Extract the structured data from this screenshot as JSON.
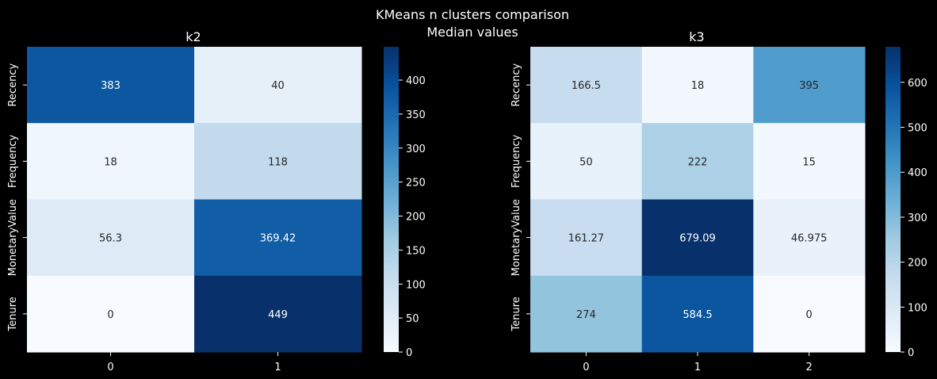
{
  "figure": {
    "title": "KMeans n clusters comparison",
    "subtitle": "Median values"
  },
  "chart_data": [
    {
      "type": "heatmap",
      "title": "k2",
      "xlabel": "",
      "ylabel": "",
      "x_categories": [
        "0",
        "1"
      ],
      "y_categories": [
        "Recency",
        "Frequency",
        "MonetaryValue",
        "Tenure"
      ],
      "values": [
        [
          383,
          40
        ],
        [
          18,
          118
        ],
        [
          56.3,
          369.42
        ],
        [
          0,
          449
        ]
      ],
      "annotations": [
        [
          "383",
          "40"
        ],
        [
          "18",
          "118"
        ],
        [
          "56.3",
          "369.42"
        ],
        [
          "0",
          "449"
        ]
      ],
      "colormap": "Blues",
      "colorbar": {
        "min": 0,
        "max": 449,
        "ticks": [
          "0",
          "50",
          "100",
          "150",
          "200",
          "250",
          "300",
          "350",
          "400"
        ]
      }
    },
    {
      "type": "heatmap",
      "title": "k3",
      "xlabel": "",
      "ylabel": "",
      "x_categories": [
        "0",
        "1",
        "2"
      ],
      "y_categories": [
        "Recency",
        "Frequency",
        "MonetaryValue",
        "Tenure"
      ],
      "values": [
        [
          166.5,
          18,
          395
        ],
        [
          50,
          222,
          15
        ],
        [
          161.27,
          679.09,
          46.975
        ],
        [
          274,
          584.5,
          0
        ]
      ],
      "annotations": [
        [
          "166.5",
          "18",
          "395"
        ],
        [
          "50",
          "222",
          "15"
        ],
        [
          "161.27",
          "679.09",
          "46.975"
        ],
        [
          "274",
          "584.5",
          "0"
        ]
      ],
      "colormap": "Blues",
      "colorbar": {
        "min": 0,
        "max": 679.09,
        "ticks": [
          "0",
          "100",
          "200",
          "300",
          "400",
          "500",
          "600"
        ]
      }
    }
  ],
  "colors": {
    "background": "#000000",
    "text": "#ffffff",
    "annot_dark": "#262626",
    "annot_light": "#ffffff",
    "blues": [
      "#f7fbff",
      "#deebf7",
      "#c6dbef",
      "#9ecae1",
      "#6baed6",
      "#4292c6",
      "#2171b5",
      "#08519c",
      "#08306b"
    ]
  }
}
